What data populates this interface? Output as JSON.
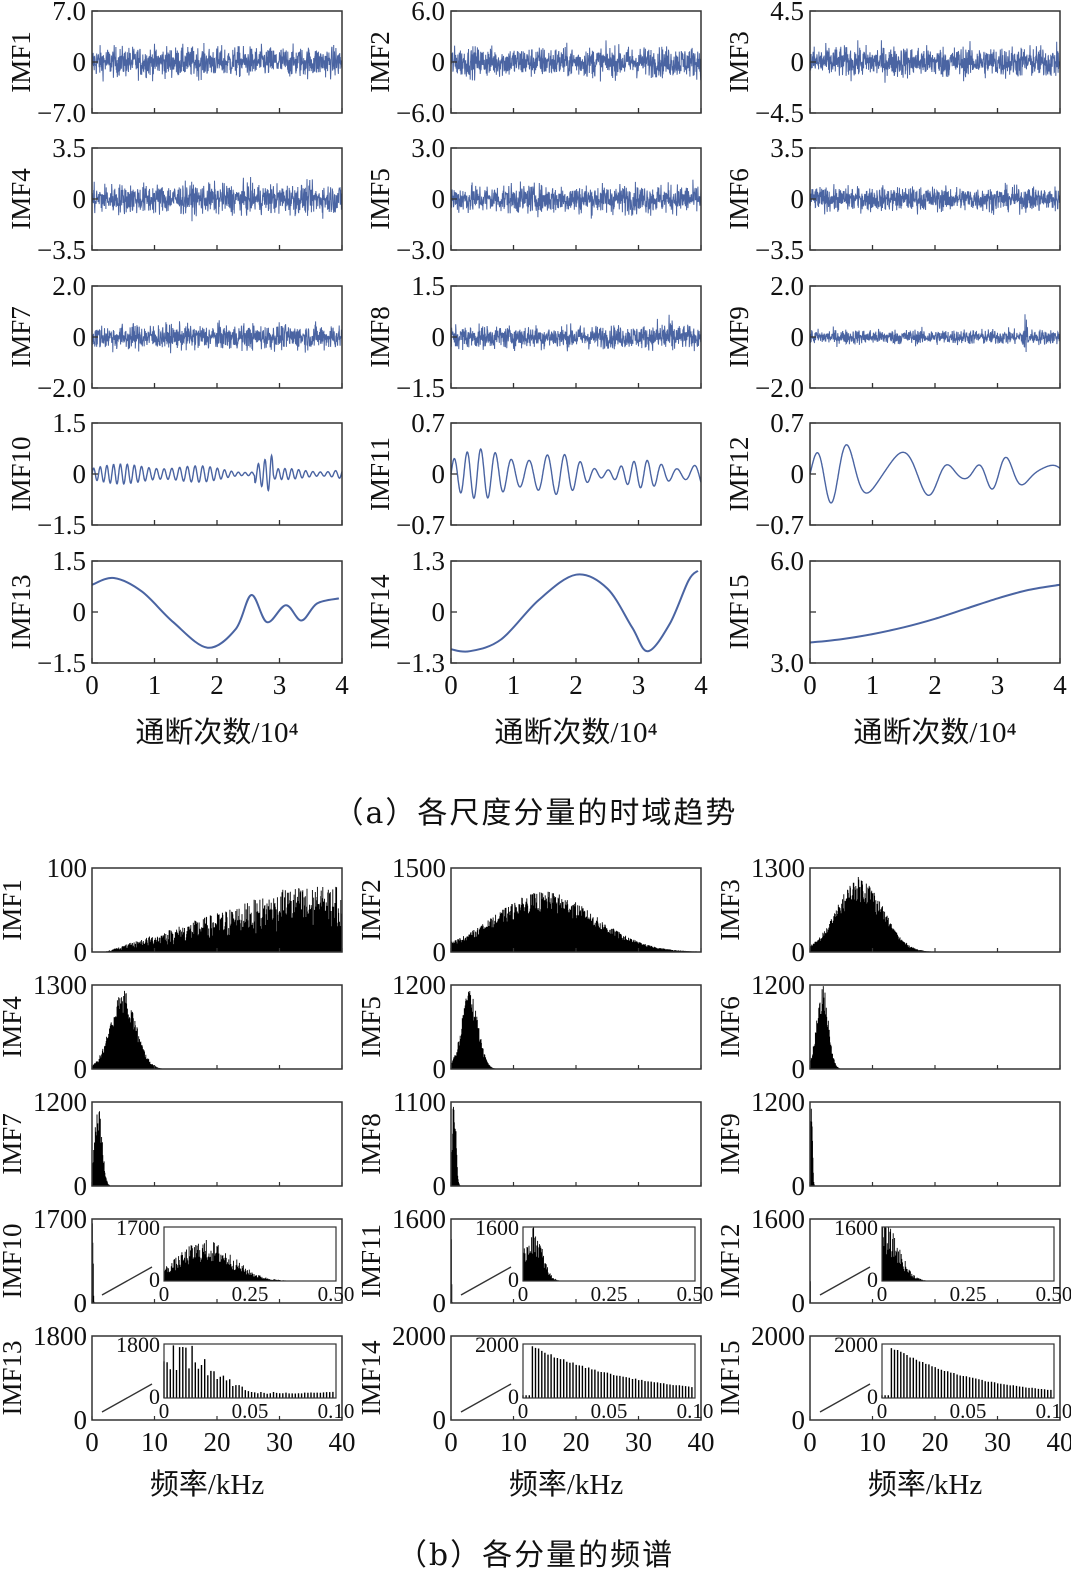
{
  "captions": {
    "a": "（a）各尺度分量的时域趋势",
    "b": "（b）各分量的频谱"
  },
  "colors": {
    "signal": "#4a64a2",
    "spectrum": "#000000",
    "frame": "#333333"
  },
  "chart_data": [
    {
      "type": "line",
      "title": "各尺度分量的时域趋势",
      "xlabel": "通断次数/10⁴",
      "xlim": [
        0,
        4
      ],
      "xticks": [
        "0",
        "1",
        "2",
        "3",
        "4"
      ],
      "series": [
        {
          "name": "IMF1",
          "ylim": [
            -7.0,
            7.0
          ],
          "ticks": [
            "7.0",
            "0",
            "−7.0"
          ],
          "kind": "noise",
          "amp": 0.5
        },
        {
          "name": "IMF2",
          "ylim": [
            -6.0,
            6.0
          ],
          "ticks": [
            "6.0",
            "0",
            "−6.0"
          ],
          "kind": "noise",
          "amp": 0.5
        },
        {
          "name": "IMF3",
          "ylim": [
            -4.5,
            4.5
          ],
          "ticks": [
            "4.5",
            "0",
            "−4.5"
          ],
          "kind": "noise",
          "amp": 0.52
        },
        {
          "name": "IMF4",
          "ylim": [
            -3.5,
            3.5
          ],
          "ticks": [
            "3.5",
            "0",
            "−3.5"
          ],
          "kind": "noise",
          "amp": 0.5
        },
        {
          "name": "IMF5",
          "ylim": [
            -3.0,
            3.0
          ],
          "ticks": [
            "3.0",
            "0",
            "−3.0"
          ],
          "kind": "noise",
          "amp": 0.48
        },
        {
          "name": "IMF6",
          "ylim": [
            -3.5,
            3.5
          ],
          "ticks": [
            "3.5",
            "0",
            "−3.5"
          ],
          "kind": "noise",
          "amp": 0.4
        },
        {
          "name": "IMF7",
          "ylim": [
            -2.0,
            2.0
          ],
          "ticks": [
            "2.0",
            "0",
            "−2.0"
          ],
          "kind": "noise",
          "amp": 0.42
        },
        {
          "name": "IMF8",
          "ylim": [
            -1.5,
            1.5
          ],
          "ticks": [
            "1.5",
            "0",
            "−1.5"
          ],
          "kind": "noise",
          "amp": 0.38
        },
        {
          "name": "IMF9",
          "ylim": [
            -2.0,
            2.0
          ],
          "ticks": [
            "2.0",
            "0",
            "−2.0"
          ],
          "kind": "noise",
          "amp": 0.25
        },
        {
          "name": "IMF10",
          "ylim": [
            -1.5,
            1.5
          ],
          "ticks": [
            "1.5",
            "0",
            "−1.5"
          ],
          "kind": "osc",
          "freq": 55,
          "amp": 0.18
        },
        {
          "name": "IMF11",
          "ylim": [
            -0.7,
            0.7
          ],
          "ticks": [
            "0.7",
            "0",
            "−0.7"
          ],
          "kind": "osc",
          "freq": 26,
          "amp": 0.45
        },
        {
          "name": "IMF12",
          "ylim": [
            -0.7,
            0.7
          ],
          "ticks": [
            "0.7",
            "0",
            "−0.7"
          ],
          "kind": "osc",
          "freq": 10,
          "amp": 0.55
        },
        {
          "name": "IMF13",
          "ylim": [
            -1.5,
            1.5
          ],
          "ticks": [
            "1.5",
            "0",
            "−1.5"
          ],
          "kind": "points",
          "x": [
            0,
            0.35,
            0.8,
            1.3,
            1.85,
            2.3,
            2.55,
            2.8,
            3.1,
            3.35,
            3.6,
            3.95
          ],
          "y": [
            0.8,
            1.0,
            0.6,
            -0.3,
            -1.05,
            -0.5,
            0.5,
            -0.3,
            0.2,
            -0.25,
            0.25,
            0.4
          ]
        },
        {
          "name": "IMF14",
          "ylim": [
            -1.3,
            1.3
          ],
          "ticks": [
            "1.3",
            "0",
            "−1.3"
          ],
          "kind": "points",
          "x": [
            0,
            0.3,
            0.8,
            1.4,
            2.0,
            2.5,
            2.9,
            3.15,
            3.5,
            3.8,
            3.95
          ],
          "y": [
            -0.95,
            -1.0,
            -0.7,
            0.3,
            0.95,
            0.6,
            -0.4,
            -1.0,
            -0.3,
            0.8,
            1.05
          ]
        },
        {
          "name": "IMF15",
          "ylim": [
            3.0,
            6.0
          ],
          "ticks": [
            "6.0",
            "",
            "3.0"
          ],
          "kind": "points",
          "x": [
            0,
            0.5,
            1.0,
            1.5,
            2.0,
            2.5,
            3.0,
            3.5,
            4.0
          ],
          "y": [
            3.6,
            3.7,
            3.85,
            4.05,
            4.3,
            4.6,
            4.9,
            5.15,
            5.3
          ]
        }
      ]
    },
    {
      "type": "bar",
      "title": "各分量的频谱",
      "xlabel": "频率/kHz",
      "xlim": [
        0,
        40
      ],
      "xticks": [
        "0",
        "10",
        "20",
        "30",
        "40"
      ],
      "series": [
        {
          "name": "IMF1",
          "ymax": 100,
          "ticks": [
            "100",
            "0"
          ],
          "center": 38,
          "width": 16,
          "peak": 0.6,
          "kind": "rise"
        },
        {
          "name": "IMF2",
          "ymax": 1500,
          "ticks": [
            "1500",
            "0"
          ],
          "center": 15,
          "width": 8,
          "peak": 0.6
        },
        {
          "name": "IMF3",
          "ymax": 1300,
          "ticks": [
            "1300",
            "0"
          ],
          "center": 8,
          "width": 3.6,
          "peak": 0.75
        },
        {
          "name": "IMF4",
          "ymax": 1300,
          "ticks": [
            "1300",
            "0"
          ],
          "center": 5,
          "width": 2.0,
          "peak": 0.78
        },
        {
          "name": "IMF5",
          "ymax": 1200,
          "ticks": [
            "1200",
            "0"
          ],
          "center": 3,
          "width": 1.3,
          "peak": 0.78
        },
        {
          "name": "IMF6",
          "ymax": 1200,
          "ticks": [
            "1200",
            "0"
          ],
          "center": 2,
          "width": 0.9,
          "peak": 0.85
        },
        {
          "name": "IMF7",
          "ymax": 1200,
          "ticks": [
            "1200",
            "0"
          ],
          "center": 1,
          "width": 0.6,
          "peak": 0.85
        },
        {
          "name": "IMF8",
          "ymax": 1100,
          "ticks": [
            "1100",
            "0"
          ],
          "center": 0.5,
          "width": 0.3,
          "peak": 0.9
        },
        {
          "name": "IMF9",
          "ymax": 1200,
          "ticks": [
            "1200",
            "0"
          ],
          "center": 0.25,
          "width": 0.15,
          "peak": 0.9
        },
        {
          "name": "IMF10",
          "ymax": 1700,
          "ticks": [
            "1700",
            "0"
          ],
          "center": 0.1,
          "width": 0.08,
          "peak": 0.95,
          "inset": {
            "ymax": 1700,
            "yticks": [
              "1700",
              "0"
            ],
            "xticks": [
              "0",
              "0.25",
              "0.50"
            ],
            "xlim": [
              0,
              0.5
            ],
            "center": 0.12,
            "width": 0.08,
            "peak": 0.7
          }
        },
        {
          "name": "IMF11",
          "ymax": 1600,
          "ticks": [
            "1600",
            "0"
          ],
          "center": 0.05,
          "width": 0.05,
          "peak": 0.95,
          "inset": {
            "ymax": 1600,
            "yticks": [
              "1600",
              "0"
            ],
            "xticks": [
              "0",
              "0.25",
              "0.50"
            ],
            "xlim": [
              0,
              0.5
            ],
            "center": 0.03,
            "width": 0.025,
            "peak": 0.95
          }
        },
        {
          "name": "IMF12",
          "ymax": 1600,
          "ticks": [
            "1600",
            "0"
          ],
          "center": 0.02,
          "width": 0.03,
          "peak": 0.95,
          "inset": {
            "ymax": 1600,
            "yticks": [
              "1600",
              "0"
            ],
            "xticks": [
              "0",
              "0.25",
              "0.50"
            ],
            "xlim": [
              0,
              0.5
            ],
            "center": 0.01,
            "width": 0.04,
            "peak": 0.95
          }
        },
        {
          "name": "IMF13",
          "ymax": 1800,
          "ticks": [
            "1800",
            "0"
          ],
          "center": 0.01,
          "width": 0.02,
          "peak": 0.95,
          "inset": {
            "ymax": 1800,
            "yticks": [
              "1800",
              "0"
            ],
            "xticks": [
              "0",
              "0.05",
              "0.10"
            ],
            "xlim": [
              0,
              0.1
            ],
            "center": 0.01,
            "width": 0.02,
            "peak": 1.0,
            "sparse": true
          }
        },
        {
          "name": "IMF14",
          "ymax": 2000,
          "ticks": [
            "2000",
            "0"
          ],
          "center": 0.005,
          "width": 0.01,
          "peak": 0.95,
          "inset": {
            "ymax": 2000,
            "yticks": [
              "2000",
              "0"
            ],
            "xticks": [
              "0",
              "0.05",
              "0.10"
            ],
            "xlim": [
              0,
              0.1
            ],
            "center": 0.005,
            "width": 0.06,
            "peak": 1.0,
            "sparse": true,
            "decay": true
          }
        },
        {
          "name": "IMF15",
          "ymax": 2000,
          "ticks": [
            "2000",
            "0"
          ],
          "center": 0.005,
          "width": 0.01,
          "peak": 0.95,
          "inset": {
            "ymax": 2000,
            "yticks": [
              "2000",
              "0"
            ],
            "xticks": [
              "0",
              "0.05",
              "0.10"
            ],
            "xlim": [
              0,
              0.1
            ],
            "center": 0.005,
            "width": 0.05,
            "peak": 1.0,
            "sparse": true,
            "decay": true
          }
        }
      ]
    }
  ]
}
